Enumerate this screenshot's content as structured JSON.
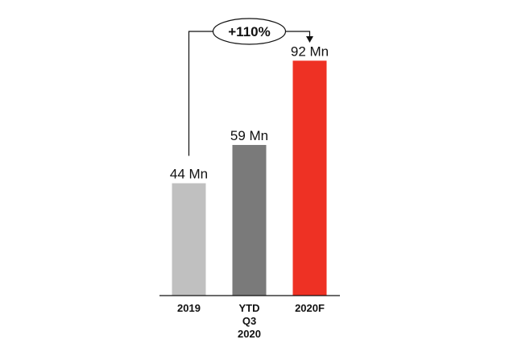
{
  "chart_data": {
    "type": "bar",
    "title": "",
    "xlabel": "",
    "ylabel": "",
    "categories": [
      [
        "2019"
      ],
      [
        "YTD",
        "Q3",
        "2020"
      ],
      [
        "2020F"
      ]
    ],
    "values": [
      44,
      59,
      92
    ],
    "value_labels": [
      "44 Mn",
      "59 Mn",
      "92 Mn"
    ],
    "colors": [
      "#c0c0c0",
      "#7a7a7a",
      "#ee3124"
    ],
    "ylim": [
      0,
      100
    ],
    "grid": false,
    "legend": "none",
    "annotation": {
      "text": "+110%",
      "from_category": 0,
      "to_category": 2
    }
  }
}
